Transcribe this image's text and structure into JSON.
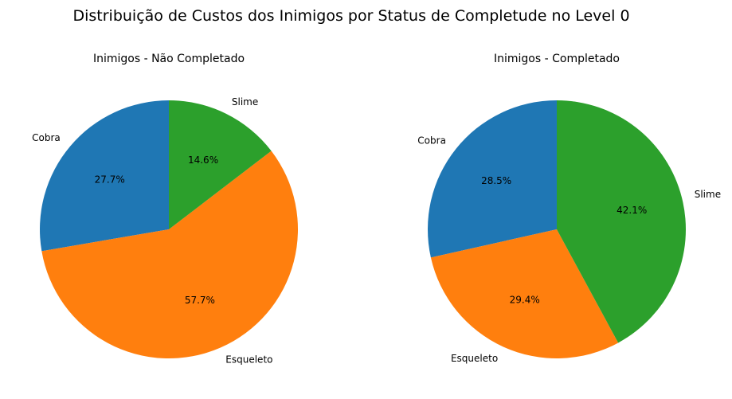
{
  "figure": {
    "title": "Distribuição de Custos dos Inimigos por Status de Completude no Level 0"
  },
  "chart_data": [
    {
      "type": "pie",
      "title": "Inimigos - Não Completado",
      "labels": [
        "Cobra",
        "Esqueleto",
        "Slime"
      ],
      "values": [
        27.7,
        57.7,
        14.6
      ],
      "percent_labels": [
        "27.7%",
        "57.7%",
        "14.6%"
      ],
      "colors": [
        "#1f77b4",
        "#ff7f0e",
        "#2ca02c"
      ],
      "start_angle_deg": 90,
      "direction": "counterclockwise"
    },
    {
      "type": "pie",
      "title": "Inimigos - Completado",
      "labels": [
        "Cobra",
        "Esqueleto",
        "Slime"
      ],
      "values": [
        28.5,
        29.4,
        42.1
      ],
      "percent_labels": [
        "28.5%",
        "29.4%",
        "42.1%"
      ],
      "colors": [
        "#1f77b4",
        "#ff7f0e",
        "#2ca02c"
      ],
      "start_angle_deg": 90,
      "direction": "counterclockwise"
    }
  ]
}
